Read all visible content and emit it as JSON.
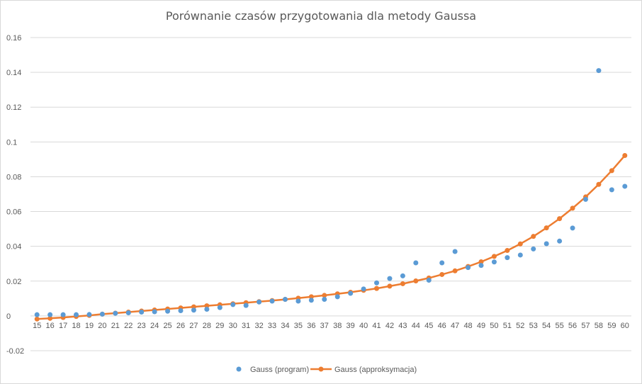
{
  "chart_data": {
    "type": "scatter",
    "title": "Porównanie czasów przygotowania dla metody Gaussa",
    "xlabel": "",
    "ylabel": "",
    "categories": [
      15,
      16,
      17,
      18,
      19,
      20,
      21,
      22,
      23,
      24,
      25,
      26,
      27,
      28,
      29,
      30,
      31,
      32,
      33,
      34,
      35,
      36,
      37,
      38,
      39,
      40,
      41,
      42,
      43,
      44,
      45,
      46,
      47,
      48,
      49,
      50,
      51,
      52,
      53,
      54,
      55,
      56,
      57,
      58,
      59,
      60
    ],
    "ylim": [
      -0.02,
      0.16
    ],
    "yticks": [
      -0.02,
      0,
      0.02,
      0.04,
      0.06,
      0.08,
      0.1,
      0.12,
      0.14,
      0.16
    ],
    "ytick_labels": [
      "-0.02",
      "0",
      "0.02",
      "0.04",
      "0.06",
      "0.08",
      "0.1",
      "0.12",
      "0.14",
      "0.16"
    ],
    "grid": true,
    "legend_position": "bottom",
    "series": [
      {
        "name": "Gauss (program)",
        "kind": "markers",
        "color": "#5B9BD5",
        "values": [
          0.0007,
          0.0007,
          0.0007,
          0.0007,
          0.0008,
          0.001,
          0.0015,
          0.0018,
          0.0022,
          0.0024,
          0.0027,
          0.003,
          0.0033,
          0.0038,
          0.0048,
          0.0065,
          0.006,
          0.008,
          0.0085,
          0.0095,
          0.0085,
          0.009,
          0.0095,
          0.011,
          0.013,
          0.0155,
          0.019,
          0.0215,
          0.023,
          0.0305,
          0.0205,
          0.0305,
          0.037,
          0.0278,
          0.029,
          0.031,
          0.0335,
          0.035,
          0.0385,
          0.0415,
          0.043,
          0.0505,
          0.067,
          0.141,
          0.0725,
          0.0745
        ]
      },
      {
        "name": "Gauss (approksymacja)",
        "kind": "line-markers",
        "color": "#ED7D31",
        "values": [
          -0.0018,
          -0.0014,
          -0.0009,
          -0.0003,
          0.0003,
          0.001,
          0.0016,
          0.0022,
          0.0028,
          0.0034,
          0.004,
          0.0046,
          0.0052,
          0.0058,
          0.0064,
          0.007,
          0.0076,
          0.0082,
          0.0088,
          0.0095,
          0.0102,
          0.011,
          0.0118,
          0.0127,
          0.0136,
          0.0147,
          0.0158,
          0.0171,
          0.0185,
          0.0201,
          0.0218,
          0.0238,
          0.0259,
          0.0284,
          0.0311,
          0.0342,
          0.0376,
          0.0414,
          0.0457,
          0.0506,
          0.0559,
          0.0619,
          0.0684,
          0.0756,
          0.0835,
          0.0922
        ]
      }
    ]
  }
}
